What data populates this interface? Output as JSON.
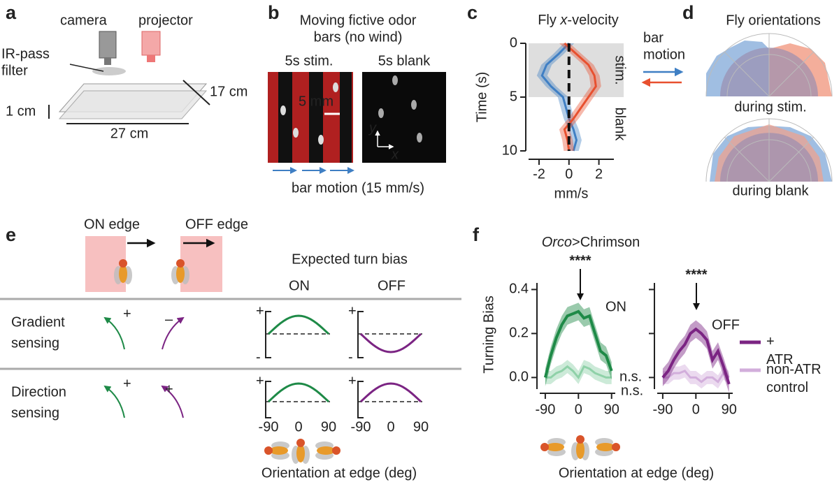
{
  "panel_a": {
    "letter": "a",
    "camera": "camera",
    "projector": "projector",
    "filter": [
      "IR-pass",
      "filter"
    ],
    "thickness": "1 cm",
    "depth": "17 cm",
    "width": "27 cm"
  },
  "panel_b": {
    "letter": "b",
    "title": [
      "Moving fictive odor",
      "bars (no wind)"
    ],
    "stim": "5s stim.",
    "blank": "5s blank",
    "scale_bar": "5 mm",
    "axis_y": "y",
    "axis_x": "x",
    "caption": "bar motion (15 mm/s)"
  },
  "panel_c": {
    "letter": "c",
    "legend_title": [
      "bar",
      "motion"
    ]
  },
  "panel_d": {
    "letter": "d",
    "title": "Fly orientations",
    "top_label": "during stim.",
    "bottom_label": "during blank"
  },
  "panel_e": {
    "letter": "e",
    "on_edge": "ON edge",
    "off_edge": "OFF edge",
    "expected": "Expected turn bias",
    "on": "ON",
    "off": "OFF",
    "rows": [
      {
        "label": [
          "Gradient",
          "sensing"
        ],
        "on_sign": "+",
        "off_sign": "–"
      },
      {
        "label": [
          "Direction",
          "sensing"
        ],
        "on_sign": "+",
        "off_sign": "+"
      }
    ],
    "axis_plus": "+",
    "axis_minus": "-",
    "tick_labels": [
      "-90",
      "0",
      "90"
    ],
    "xlabel": "Orientation at edge (deg)"
  },
  "panel_f": {
    "letter": "f",
    "title": [
      "Orco",
      ">Chrimson"
    ],
    "xlabel": "Orientation at edge (deg)"
  },
  "chart_data": [
    {
      "type": "line",
      "title": [
        "Fly ",
        "x",
        "-velocity"
      ],
      "ylabel": "Time (s)",
      "xlabel": "mm/s",
      "y": [
        0,
        1,
        2,
        3,
        4,
        5,
        6,
        7,
        8,
        9,
        10
      ],
      "ylim": [
        0,
        10
      ],
      "y_inverted": true,
      "yticks": [
        0,
        5,
        10
      ],
      "xlim": [
        -2.7,
        3
      ],
      "xticks": [
        -2,
        0,
        2
      ],
      "stim_span": [
        0,
        5
      ],
      "span_labels": [
        "stim.",
        "blank"
      ],
      "series": [
        {
          "color": "#3f7fc4",
          "values": [
            0,
            -0.7,
            -1.5,
            -1.8,
            -1.2,
            -0.4,
            -0.2,
            0,
            0.3,
            0.5,
            0.3
          ],
          "errors": [
            0.35,
            0.35,
            0.35,
            0.35,
            0.35,
            0.35,
            0.35,
            0.35,
            0.35,
            0.35,
            0.35
          ]
        },
        {
          "color": "#e8502f",
          "values": [
            -0.3,
            0.5,
            1.3,
            1.7,
            1.8,
            1.3,
            0.8,
            0.3,
            -0.3,
            -0.1,
            0
          ],
          "errors": [
            0.35,
            0.35,
            0.35,
            0.35,
            0.35,
            0.35,
            0.35,
            0.35,
            0.35,
            0.35,
            0.35
          ]
        }
      ]
    },
    {
      "type": "line",
      "ylabel": "Turning Bias",
      "x": [
        -90,
        -75,
        -60,
        -45,
        -30,
        -15,
        0,
        15,
        30,
        45,
        60,
        75,
        90
      ],
      "xlim": [
        -105,
        100
      ],
      "xticks": [
        -90,
        0,
        90
      ],
      "ylim": [
        -0.04,
        0.43
      ],
      "yticks": [
        {
          "value": 0,
          "label": "0.0"
        },
        {
          "value": 0.2,
          "label": "0.2"
        },
        {
          "value": 0.4,
          "label": "0.4"
        }
      ],
      "show_ytick_labels": true,
      "label": "ON",
      "stars": "****",
      "ns": "n.s.",
      "series": [
        {
          "color": "#1e8a47",
          "values": [
            0,
            0.1,
            0.18,
            0.24,
            0.28,
            0.29,
            0.3,
            0.27,
            0.28,
            0.2,
            0.12,
            0.1,
            0.03
          ],
          "errors": [
            0.04,
            0.04,
            0.04,
            0.04,
            0.04,
            0.04,
            0.04,
            0.04,
            0.04,
            0.04,
            0.04,
            0.04,
            0.04
          ]
        },
        {
          "color": "#8fd1a8",
          "values": [
            0,
            0,
            0.02,
            0.03,
            0.05,
            0.03,
            0,
            0.05,
            0.04,
            0.02,
            0.01,
            0,
            0
          ],
          "errors": [
            0.03,
            0.03,
            0.03,
            0.03,
            0.03,
            0.03,
            0.03,
            0.03,
            0.03,
            0.03,
            0.03,
            0.03,
            0.03
          ]
        }
      ]
    },
    {
      "type": "line",
      "x": [
        -90,
        -75,
        -60,
        -45,
        -30,
        -15,
        0,
        15,
        30,
        45,
        60,
        75,
        90
      ],
      "xlim": [
        -105,
        100
      ],
      "xticks": [
        -90,
        0,
        90
      ],
      "ylim": [
        -0.04,
        0.43
      ],
      "yticks": [
        0,
        0.2,
        0.4
      ],
      "show_ytick_labels": false,
      "label": "OFF",
      "stars": "****",
      "ns": "n.s.",
      "series": [
        {
          "name": "+ ATR",
          "color": "#7b2483",
          "values": [
            0,
            0.03,
            0.08,
            0.12,
            0.15,
            0.2,
            0.22,
            0.2,
            0.17,
            0.08,
            0.12,
            0.05,
            -0.03
          ],
          "errors": [
            0.04,
            0.04,
            0.04,
            0.04,
            0.04,
            0.04,
            0.04,
            0.04,
            0.04,
            0.04,
            0.04,
            0.04,
            0.04
          ]
        },
        {
          "name": "non-ATR control",
          "color": "#d2aedb",
          "values": [
            0,
            0,
            0.02,
            0.02,
            0.03,
            0,
            0,
            -0.02,
            0,
            0,
            -0.02,
            0.02,
            0
          ],
          "errors": [
            0.03,
            0.03,
            0.03,
            0.03,
            0.03,
            0.03,
            0.03,
            0.03,
            0.03,
            0.03,
            0.03,
            0.03,
            0.03
          ]
        }
      ]
    }
  ]
}
